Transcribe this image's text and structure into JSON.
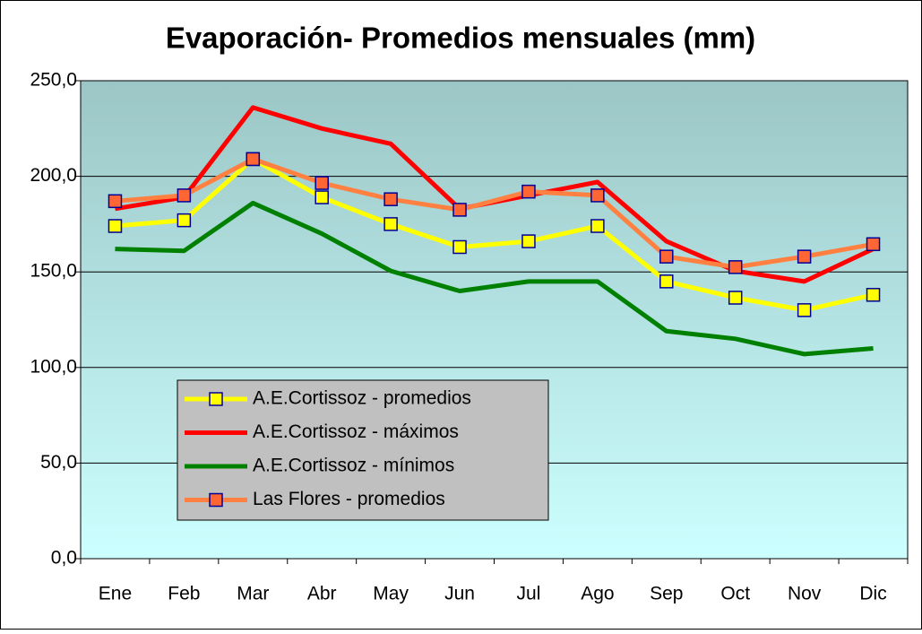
{
  "chart_data": {
    "type": "line",
    "title": "Evaporación- Promedios mensuales (mm)",
    "categories": [
      "Ene",
      "Feb",
      "Mar",
      "Abr",
      "May",
      "Jun",
      "Jul",
      "Ago",
      "Sep",
      "Oct",
      "Nov",
      "Dic"
    ],
    "series": [
      {
        "name": "A.E.Cortissoz - promedios",
        "color": "#ffff00",
        "marker_color": "#ffff00",
        "values": [
          174,
          177,
          209,
          189,
          175,
          163,
          166,
          174,
          145,
          136.5,
          130,
          138
        ]
      },
      {
        "name": "A.E.Cortissoz - máximos",
        "color": "#ff0000",
        "values": [
          183,
          189,
          236,
          225,
          217,
          183,
          190,
          197,
          166,
          150.5,
          145,
          162
        ]
      },
      {
        "name": "A.E.Cortissoz - mínimos",
        "color": "#008000",
        "values": [
          162,
          161,
          186,
          170,
          150.5,
          140,
          145,
          145,
          119,
          115,
          107,
          110
        ]
      },
      {
        "name": "Las Flores - promedios",
        "color": "#ff8040",
        "marker_color": "#ff6633",
        "values": [
          187,
          190,
          209,
          196.5,
          188,
          182.5,
          192,
          190,
          158,
          152.5,
          158,
          164.5
        ]
      }
    ],
    "ylim": [
      0,
      250
    ],
    "yticks": [
      {
        "value": 0,
        "label": "0,0"
      },
      {
        "value": 50,
        "label": "50,0"
      },
      {
        "value": 100,
        "label": "100,0"
      },
      {
        "value": 150,
        "label": "150,0"
      },
      {
        "value": 200,
        "label": "200,0"
      },
      {
        "value": 250,
        "label": "250,0"
      }
    ],
    "grid": true
  }
}
